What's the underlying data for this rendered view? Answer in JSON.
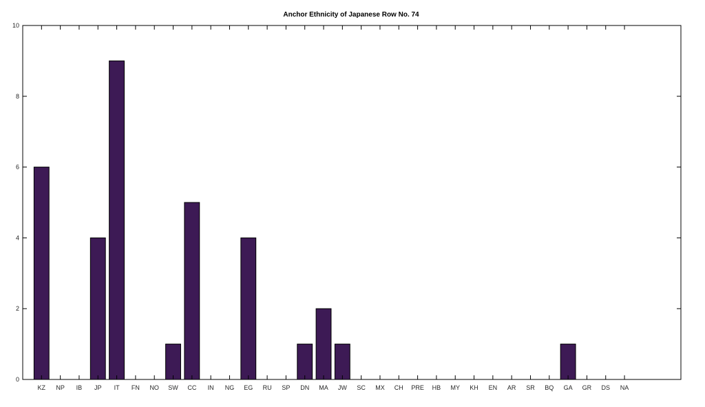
{
  "chart_data": {
    "type": "bar",
    "title": "Anchor Ethnicity of Japanese Row No. 74",
    "xlabel": "",
    "ylabel": "",
    "categories": [
      "KZ",
      "NP",
      "IB",
      "JP",
      "IT",
      "FN",
      "NO",
      "SW",
      "CC",
      "IN",
      "NG",
      "EG",
      "RU",
      "SP",
      "DN",
      "MA",
      "JW",
      "SC",
      "MX",
      "CH",
      "PRE",
      "HB",
      "MY",
      "KH",
      "EN",
      "AR",
      "SR",
      "BQ",
      "GA",
      "GR",
      "DS",
      "NA"
    ],
    "values": [
      6,
      0,
      0,
      4,
      9,
      0,
      0,
      1,
      5,
      0,
      0,
      4,
      0,
      0,
      1,
      2,
      1,
      0,
      0,
      0,
      0,
      0,
      0,
      0,
      0,
      0,
      0,
      0,
      1,
      0,
      0,
      0
    ],
    "ylim": [
      0,
      10
    ],
    "yticks": [
      0,
      2,
      4,
      6,
      8,
      10
    ],
    "grid": false,
    "legend": "none",
    "bar_color": "#3d1a55",
    "axis_color": "#000000"
  }
}
